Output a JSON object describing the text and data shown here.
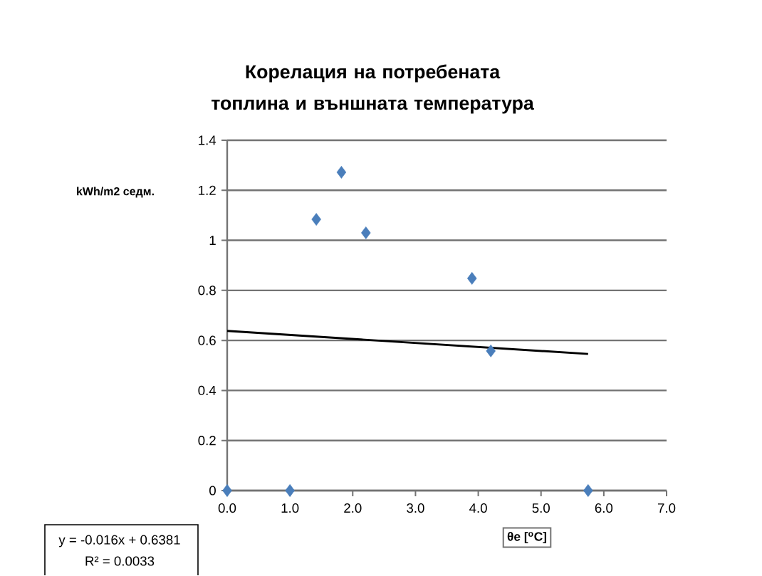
{
  "chart_data": {
    "type": "scatter",
    "title": "Корелация на потребената топлина  и външната температура",
    "xlabel": "θe  [$^{o}$C]",
    "ylabel": "kWh/m2 седм.",
    "annotations": [
      "y = -0.016x + 0.6381",
      "R² = 0.0033"
    ],
    "series": [
      {
        "color": "#4a7ebb",
        "marker": "diamond",
        "x": [
          0,
          1.0,
          1.42,
          1.82,
          2.21,
          3.9,
          4.2,
          5.75
        ],
        "values": [
          0,
          0,
          1.084,
          1.272,
          1.03,
          0.848,
          0.558,
          0
        ]
      },
      {
        "type": "line",
        "color": "#000000",
        "marker": "none",
        "x": [
          0,
          5.75
        ],
        "values": [
          0.638,
          0.546
        ]
      }
    ],
    "xlim": [
      0,
      7
    ],
    "ylim": [
      0,
      1.4
    ],
    "xticks": [
      {
        "value": 0,
        "label": "0.0"
      },
      {
        "value": 1,
        "label": "1.0"
      },
      {
        "value": 2,
        "label": "2.0"
      },
      {
        "value": 3,
        "label": "3.0"
      },
      {
        "value": 4,
        "label": "4.0"
      },
      {
        "value": 5,
        "label": "5.0"
      },
      {
        "value": 6,
        "label": "6.0"
      },
      {
        "value": 7,
        "label": "7.0"
      }
    ],
    "yticks": [
      0,
      0.2,
      0.4,
      0.6,
      0.8,
      1,
      1.2,
      1.4
    ],
    "grid": "y"
  }
}
